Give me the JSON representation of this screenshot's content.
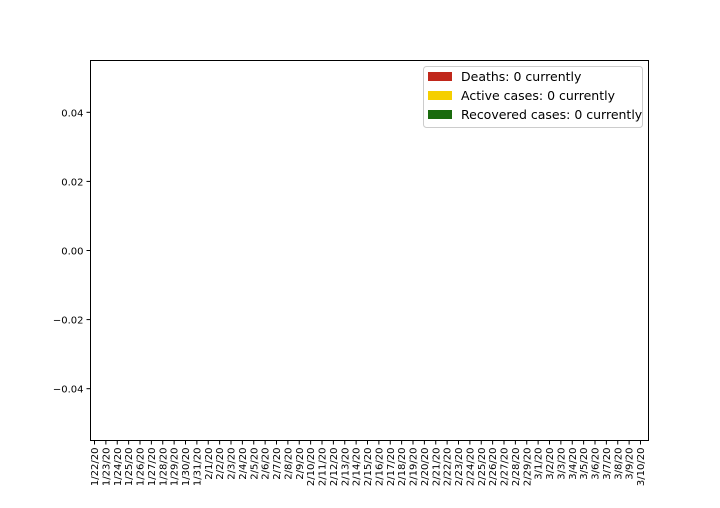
{
  "chart_data": {
    "type": "bar",
    "stacked": true,
    "title": "",
    "xlabel": "",
    "ylabel": "",
    "categories": [
      "1/22/20",
      "1/23/20",
      "1/24/20",
      "1/25/20",
      "1/26/20",
      "1/27/20",
      "1/28/20",
      "1/29/20",
      "1/30/20",
      "1/31/20",
      "2/1/20",
      "2/2/20",
      "2/3/20",
      "2/4/20",
      "2/5/20",
      "2/6/20",
      "2/7/20",
      "2/8/20",
      "2/9/20",
      "2/10/20",
      "2/11/20",
      "2/12/20",
      "2/13/20",
      "2/14/20",
      "2/15/20",
      "2/16/20",
      "2/17/20",
      "2/18/20",
      "2/19/20",
      "2/20/20",
      "2/21/20",
      "2/22/20",
      "2/23/20",
      "2/24/20",
      "2/25/20",
      "2/26/20",
      "2/27/20",
      "2/28/20",
      "2/29/20",
      "3/1/20",
      "3/2/20",
      "3/3/20",
      "3/4/20",
      "3/5/20",
      "3/6/20",
      "3/7/20",
      "3/8/20",
      "3/9/20",
      "3/10/20"
    ],
    "ylim": [
      -0.055,
      0.055
    ],
    "yticks": [
      0.04,
      0.02,
      0.0,
      -0.02,
      -0.04
    ],
    "ytick_labels": [
      "0.04",
      "0.02",
      "0.00",
      "−0.02",
      "−0.04"
    ],
    "grid": false,
    "legend_position": "top-right",
    "series": [
      {
        "name": "Deaths: 0 currently",
        "color": "#c0271b",
        "values": [
          0,
          0,
          0,
          0,
          0,
          0,
          0,
          0,
          0,
          0,
          0,
          0,
          0,
          0,
          0,
          0,
          0,
          0,
          0,
          0,
          0,
          0,
          0,
          0,
          0,
          0,
          0,
          0,
          0,
          0,
          0,
          0,
          0,
          0,
          0,
          0,
          0,
          0,
          0,
          0,
          0,
          0,
          0,
          0,
          0,
          0,
          0,
          0,
          0
        ]
      },
      {
        "name": "Active cases: 0 currently",
        "color": "#f5cf00",
        "values": [
          0,
          0,
          0,
          0,
          0,
          0,
          0,
          0,
          0,
          0,
          0,
          0,
          0,
          0,
          0,
          0,
          0,
          0,
          0,
          0,
          0,
          0,
          0,
          0,
          0,
          0,
          0,
          0,
          0,
          0,
          0,
          0,
          0,
          0,
          0,
          0,
          0,
          0,
          0,
          0,
          0,
          0,
          0,
          0,
          0,
          0,
          0,
          0,
          0
        ]
      },
      {
        "name": "Recovered cases: 0 currently",
        "color": "#1a6b0d",
        "values": [
          0,
          0,
          0,
          0,
          0,
          0,
          0,
          0,
          0,
          0,
          0,
          0,
          0,
          0,
          0,
          0,
          0,
          0,
          0,
          0,
          0,
          0,
          0,
          0,
          0,
          0,
          0,
          0,
          0,
          0,
          0,
          0,
          0,
          0,
          0,
          0,
          0,
          0,
          0,
          0,
          0,
          0,
          0,
          0,
          0,
          0,
          0,
          0,
          0
        ]
      }
    ]
  }
}
